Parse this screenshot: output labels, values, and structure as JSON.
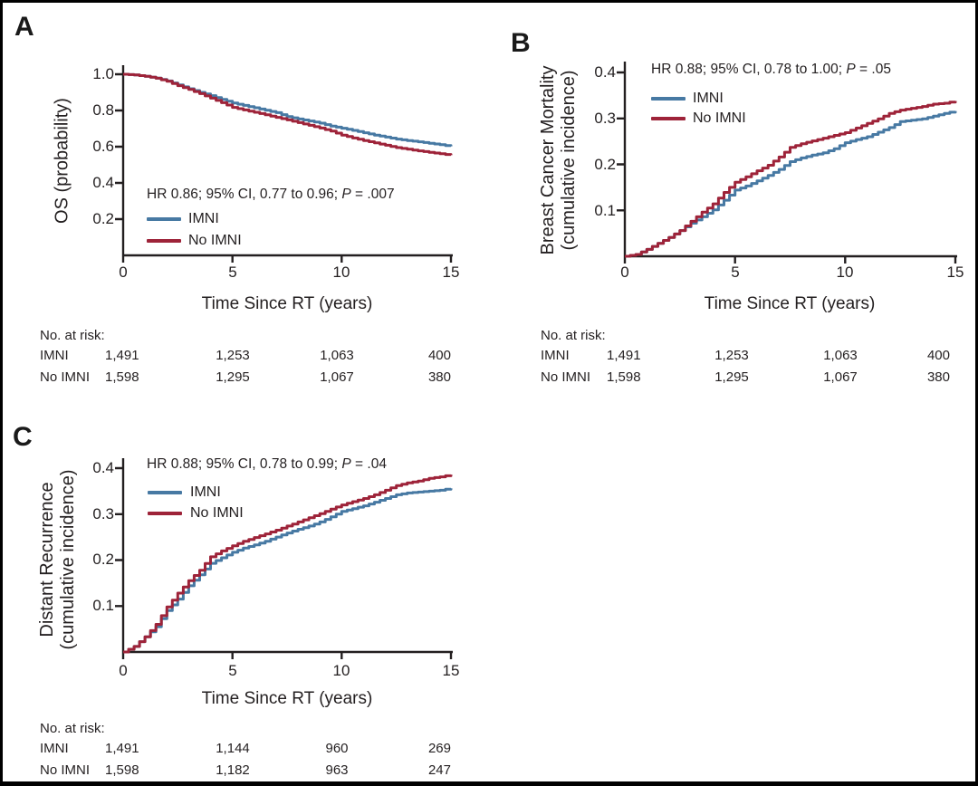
{
  "colors": {
    "imni": "#4779A3",
    "no_imni": "#9E2339",
    "text": "#231F20",
    "frame": "#000000"
  },
  "chart_data": [
    {
      "type": "line",
      "panel_label": "A",
      "ylabel_lines": [
        "OS (probability)"
      ],
      "xlabel": "Time Since RT (years)",
      "annotation": {
        "hr": "HR 0.86; 95% CI, 0.77 to 0.96; ",
        "p": "P",
        "pv": " = .007"
      },
      "legend": [
        {
          "label": "IMNI",
          "color": "imni"
        },
        {
          "label": "No IMNI",
          "color": "no_imni"
        }
      ],
      "xlim": [
        0,
        15
      ],
      "ylim": [
        0,
        1.0
      ],
      "x_tick_values": [
        0,
        5,
        10,
        15
      ],
      "x_tick_labels": [
        "0",
        "5",
        "10",
        "15"
      ],
      "y_tick_values": [
        1.0,
        0.8,
        0.6,
        0.4,
        0.2
      ],
      "y_tick_labels": [
        "1.0",
        "0.8",
        "0.6",
        "0.4",
        "0.2"
      ],
      "x_start": 0,
      "x_step": 0.5,
      "series": [
        {
          "name": "IMNI",
          "color": "imni",
          "values": [
            1.0,
            0.996,
            0.989,
            0.979,
            0.963,
            0.941,
            0.92,
            0.9,
            0.882,
            0.861,
            0.841,
            0.828,
            0.815,
            0.801,
            0.788,
            0.766,
            0.753,
            0.742,
            0.73,
            0.714,
            0.702,
            0.69,
            0.677,
            0.664,
            0.653,
            0.642,
            0.634,
            0.627,
            0.619,
            0.611,
            0.602
          ]
        },
        {
          "name": "No IMNI",
          "color": "no_imni",
          "values": [
            1.0,
            0.996,
            0.989,
            0.978,
            0.961,
            0.937,
            0.916,
            0.893,
            0.868,
            0.843,
            0.817,
            0.803,
            0.79,
            0.776,
            0.762,
            0.748,
            0.733,
            0.718,
            0.703,
            0.686,
            0.664,
            0.648,
            0.634,
            0.621,
            0.608,
            0.595,
            0.586,
            0.577,
            0.569,
            0.561,
            0.553
          ]
        }
      ],
      "risk_table": {
        "title": "No. at risk:",
        "rows": [
          {
            "label": "IMNI",
            "values": [
              "1,491",
              "1,253",
              "1,063",
              "400"
            ]
          },
          {
            "label": "No IMNI",
            "values": [
              "1,598",
              "1,295",
              "1,067",
              "380"
            ]
          }
        ]
      }
    },
    {
      "type": "line",
      "panel_label": "B",
      "ylabel_lines": [
        "Breast Cancer Mortality",
        "(cumulative incidence)"
      ],
      "xlabel": "Time Since RT (years)",
      "annotation": {
        "hr": "HR 0.88; 95% CI, 0.78 to 1.00; ",
        "p": "P",
        "pv": " = .05"
      },
      "legend": [
        {
          "label": "IMNI",
          "color": "imni"
        },
        {
          "label": "No IMNI",
          "color": "no_imni"
        }
      ],
      "xlim": [
        0,
        15
      ],
      "ylim": [
        0,
        0.4
      ],
      "x_tick_values": [
        0,
        5,
        10,
        15
      ],
      "x_tick_labels": [
        "0",
        "5",
        "10",
        "15"
      ],
      "y_tick_values": [
        0.4,
        0.3,
        0.2,
        0.1
      ],
      "y_tick_labels": [
        "0.4",
        "0.3",
        "0.2",
        "0.1"
      ],
      "x_start": 0,
      "x_step": 0.5,
      "series": [
        {
          "name": "IMNI",
          "color": "imni",
          "values": [
            0,
            0.004,
            0.015,
            0.028,
            0.041,
            0.056,
            0.072,
            0.086,
            0.101,
            0.122,
            0.144,
            0.153,
            0.164,
            0.176,
            0.189,
            0.206,
            0.214,
            0.22,
            0.225,
            0.234,
            0.247,
            0.254,
            0.26,
            0.27,
            0.28,
            0.293,
            0.296,
            0.299,
            0.305,
            0.311,
            0.316
          ]
        },
        {
          "name": "No IMNI",
          "color": "no_imni",
          "values": [
            0,
            0.004,
            0.015,
            0.028,
            0.041,
            0.056,
            0.076,
            0.096,
            0.114,
            0.139,
            0.161,
            0.173,
            0.186,
            0.198,
            0.216,
            0.237,
            0.245,
            0.251,
            0.257,
            0.263,
            0.269,
            0.279,
            0.289,
            0.299,
            0.311,
            0.318,
            0.322,
            0.326,
            0.331,
            0.333,
            0.338
          ]
        }
      ],
      "risk_table": {
        "title": "No. at risk:",
        "rows": [
          {
            "label": "IMNI",
            "values": [
              "1,491",
              "1,253",
              "1,063",
              "400"
            ]
          },
          {
            "label": "No IMNI",
            "values": [
              "1,598",
              "1,295",
              "1,067",
              "380"
            ]
          }
        ]
      }
    },
    {
      "type": "line",
      "panel_label": "C",
      "ylabel_lines": [
        "Distant Recurrence",
        "(cumulative incidence)"
      ],
      "xlabel": "Time Since RT (years)",
      "annotation": {
        "hr": "HR 0.88; 95% CI, 0.78 to 0.99; ",
        "p": "P",
        "pv": " = .04"
      },
      "legend": [
        {
          "label": "IMNI",
          "color": "imni"
        },
        {
          "label": "No IMNI",
          "color": "no_imni"
        }
      ],
      "xlim": [
        0,
        15
      ],
      "ylim": [
        0,
        0.4
      ],
      "x_tick_values": [
        0,
        5,
        10,
        15
      ],
      "x_tick_labels": [
        "0",
        "5",
        "10",
        "15"
      ],
      "y_tick_values": [
        0.4,
        0.3,
        0.2,
        0.1
      ],
      "y_tick_labels": [
        "0.4",
        "0.3",
        "0.2",
        "0.1"
      ],
      "x_start": 0,
      "x_step": 0.5,
      "series": [
        {
          "name": "IMNI",
          "color": "imni",
          "values": [
            0,
            0.012,
            0.033,
            0.055,
            0.09,
            0.115,
            0.144,
            0.168,
            0.193,
            0.205,
            0.217,
            0.226,
            0.233,
            0.241,
            0.25,
            0.259,
            0.267,
            0.274,
            0.283,
            0.294,
            0.306,
            0.312,
            0.318,
            0.326,
            0.334,
            0.342,
            0.346,
            0.348,
            0.35,
            0.352,
            0.356
          ]
        },
        {
          "name": "No IMNI",
          "color": "no_imni",
          "values": [
            0,
            0.012,
            0.033,
            0.06,
            0.098,
            0.128,
            0.155,
            0.178,
            0.207,
            0.22,
            0.231,
            0.241,
            0.249,
            0.257,
            0.265,
            0.274,
            0.283,
            0.292,
            0.301,
            0.311,
            0.32,
            0.327,
            0.334,
            0.342,
            0.352,
            0.362,
            0.368,
            0.372,
            0.378,
            0.381,
            0.386
          ]
        }
      ],
      "risk_table": {
        "title": "No. at risk:",
        "rows": [
          {
            "label": "IMNI",
            "values": [
              "1,491",
              "1,144",
              "960",
              "269"
            ]
          },
          {
            "label": "No IMNI",
            "values": [
              "1,598",
              "1,182",
              "963",
              "247"
            ]
          }
        ]
      }
    }
  ]
}
